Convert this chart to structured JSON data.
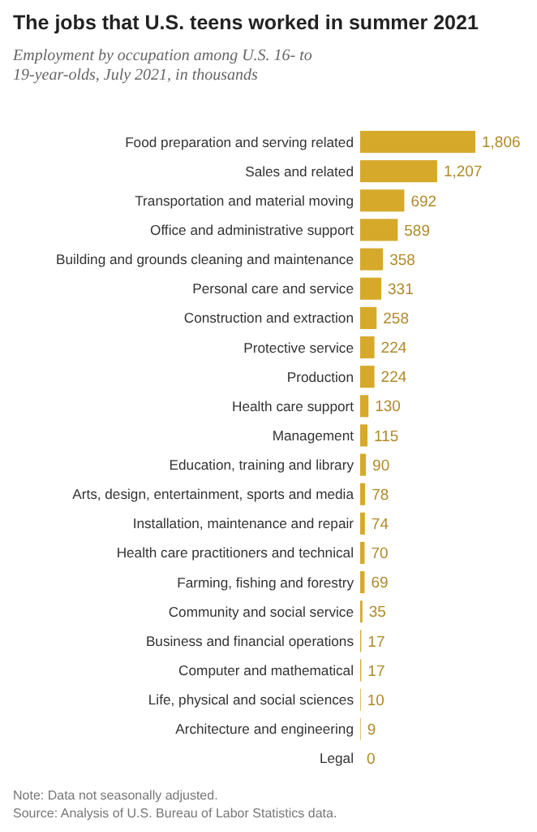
{
  "chart_data": {
    "type": "bar",
    "orientation": "horizontal",
    "title": "The jobs that U.S. teens worked in summer 2021",
    "subtitle": "Employment by occupation among U.S. 16- to 19-year-olds, July 2021, in thousands",
    "categories": [
      "Food preparation and serving related",
      "Sales and related",
      "Transportation and material moving",
      "Office and administrative support",
      "Building and grounds cleaning and maintenance",
      "Personal care and service",
      "Construction and extraction",
      "Protective service",
      "Production",
      "Health care support",
      "Management",
      "Education, training and library",
      "Arts, design, entertainment, sports and media",
      "Installation, maintenance and repair",
      "Health care practitioners and technical",
      "Farming, fishing and forestry",
      "Community and social service",
      "Business and financial operations",
      "Computer and mathematical",
      "Life, physical and social sciences",
      "Architecture and engineering",
      "Legal"
    ],
    "values": [
      1806,
      1207,
      692,
      589,
      358,
      331,
      258,
      224,
      224,
      130,
      115,
      90,
      78,
      74,
      70,
      69,
      35,
      17,
      17,
      10,
      9,
      0
    ],
    "value_labels": [
      "1,806",
      "1,207",
      "692",
      "589",
      "358",
      "331",
      "258",
      "224",
      "224",
      "130",
      "115",
      "90",
      "78",
      "74",
      "70",
      "69",
      "35",
      "17",
      "17",
      "10",
      "9",
      "0"
    ],
    "color": "#d6a92b",
    "annotations": [
      "Note: Data not seasonally adjusted.",
      "Source: Analysis of U.S. Bureau of Labor Statistics data."
    ]
  }
}
